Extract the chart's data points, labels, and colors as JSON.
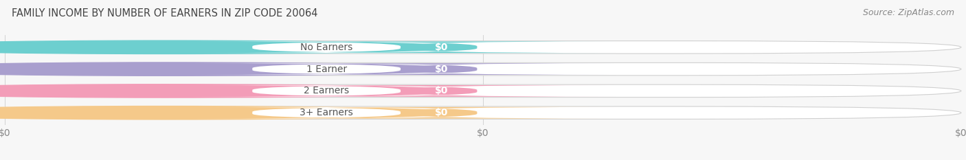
{
  "title": "FAMILY INCOME BY NUMBER OF EARNERS IN ZIP CODE 20064",
  "source": "Source: ZipAtlas.com",
  "categories": [
    "No Earners",
    "1 Earner",
    "2 Earners",
    "3+ Earners"
  ],
  "values": [
    0,
    0,
    0,
    0
  ],
  "bar_colors": [
    "#6dcfcf",
    "#a99fce",
    "#f39db8",
    "#f5c98a"
  ],
  "bar_bg_color": "#ebebeb",
  "title_fontsize": 10.5,
  "source_fontsize": 9,
  "tick_fontsize": 10,
  "label_fontsize": 10,
  "value_fontsize": 10,
  "background_color": "#f7f7f7",
  "xlabel_ticks": [
    0,
    0.5,
    1.0
  ],
  "xlabel_labels": [
    "$0",
    "$0",
    "$0"
  ]
}
